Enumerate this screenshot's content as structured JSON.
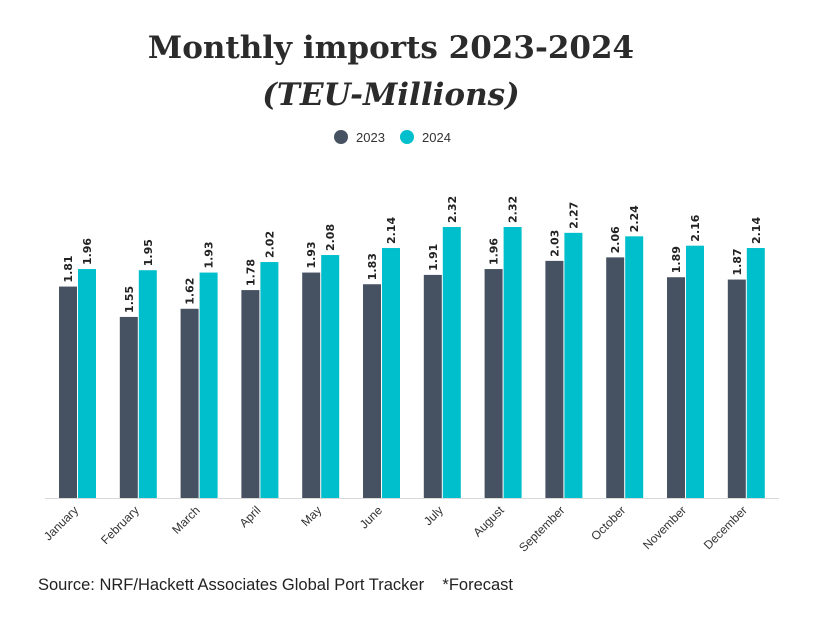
{
  "chart_data": {
    "type": "bar",
    "title": "Monthly imports 2023-2024",
    "subtitle": "(TEU-Millions)",
    "categories": [
      "January",
      "February",
      "March",
      "April",
      "May",
      "June",
      "July",
      "August",
      "September",
      "October",
      "November",
      "December"
    ],
    "series": [
      {
        "name": "2023",
        "color": "#465261",
        "values": [
          1.81,
          1.55,
          1.62,
          1.78,
          1.93,
          1.83,
          1.91,
          1.96,
          2.03,
          2.06,
          1.89,
          1.87
        ]
      },
      {
        "name": "2024",
        "color": "#00bfcc",
        "values": [
          1.96,
          1.95,
          1.93,
          2.02,
          2.08,
          2.14,
          2.32,
          2.32,
          2.27,
          2.24,
          2.16,
          2.14
        ]
      }
    ],
    "value_labels": [
      [
        "1.81",
        "1.55",
        "1.62",
        "1.78",
        "1.93",
        "1.83",
        "1.91",
        "1.96",
        "2.03",
        "2.06",
        "1.89",
        "1.87"
      ],
      [
        "1.96",
        "1.95",
        "1.93",
        "2.02",
        "2.08",
        "2.14",
        "2.32",
        "2.32",
        "2.27",
        "2.24",
        "2.16",
        "2.14"
      ]
    ],
    "ylim": [
      0,
      2.32
    ],
    "grid": false,
    "legend": "top-center"
  },
  "footer": {
    "source": "Source: NRF/Hackett Associates Global Port Tracker    *Forecast"
  }
}
